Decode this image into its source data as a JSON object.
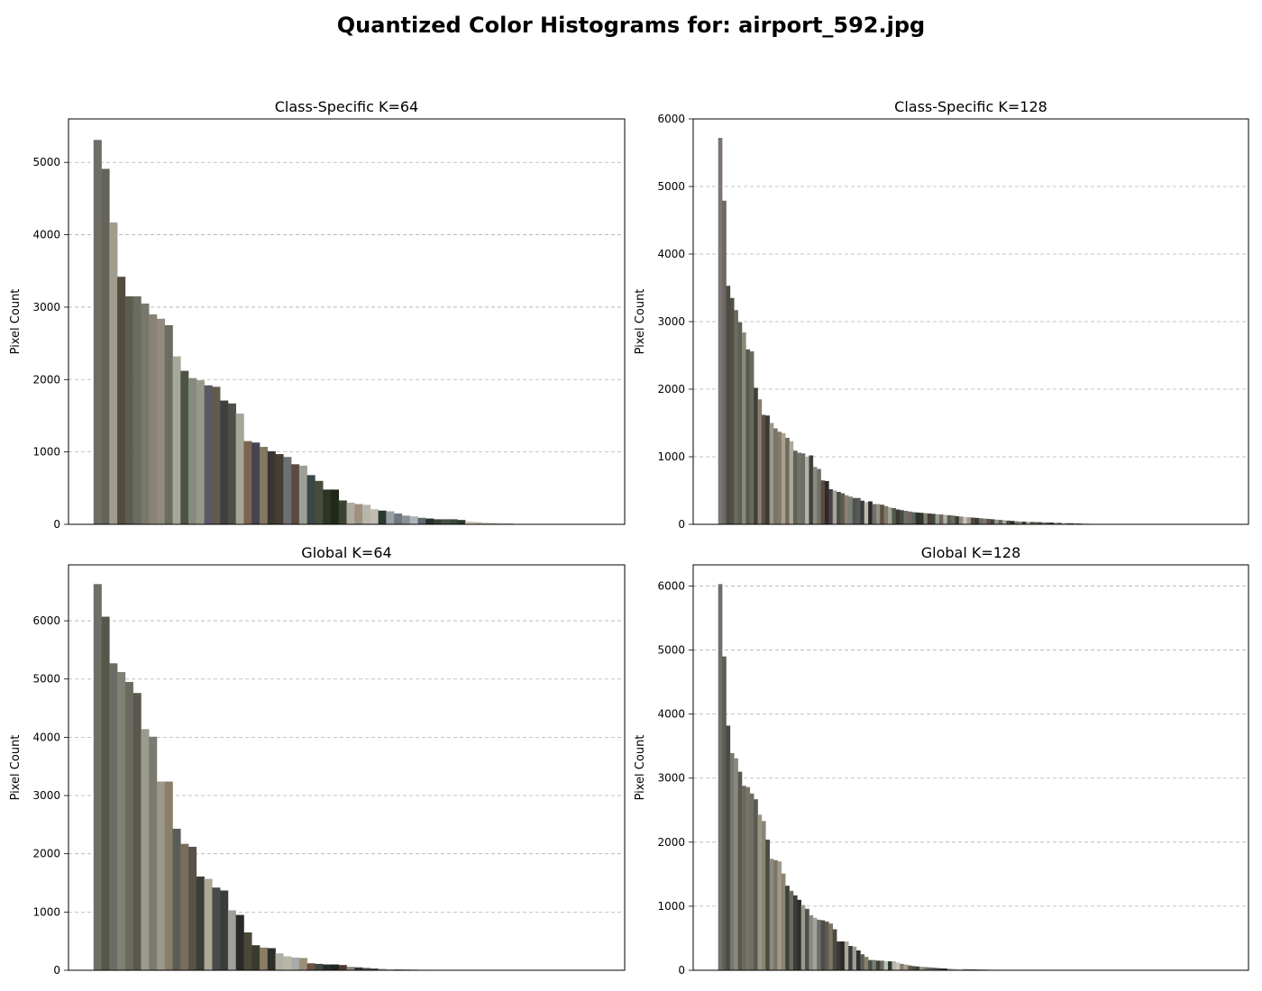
{
  "figure": {
    "title": "Quantized Color Histograms for: airport_592.jpg"
  },
  "chart_data": [
    {
      "type": "bar",
      "title": "Class-Specific K=64",
      "xlabel": "",
      "ylabel": "Pixel Count",
      "ylim": [
        0,
        5600
      ],
      "yticks": [
        0,
        1000,
        2000,
        3000,
        4000,
        5000
      ],
      "grid": "y-dashed",
      "values": [
        5310,
        4910,
        4170,
        3420,
        3150,
        3150,
        3050,
        2900,
        2840,
        2750,
        2320,
        2120,
        2020,
        1990,
        1920,
        1900,
        1710,
        1670,
        1530,
        1150,
        1130,
        1070,
        1010,
        970,
        930,
        830,
        810,
        680,
        600,
        480,
        480,
        330,
        300,
        280,
        270,
        210,
        190,
        180,
        150,
        120,
        110,
        90,
        80,
        70,
        70,
        70,
        60,
        40,
        30,
        20,
        15,
        10,
        10,
        5,
        5,
        0,
        0,
        0,
        0,
        0,
        0,
        0,
        0,
        0
      ],
      "colors": [
        "#6f6e66",
        "#65645b",
        "#a09d8f",
        "#524b3e",
        "#5c5d50",
        "#6b6c61",
        "#77786c",
        "#8a8274",
        "#928a7d",
        "#6a6c60",
        "#a7a79a",
        "#4d5446",
        "#858a7e",
        "#989889",
        "#5a5866",
        "#625a4d",
        "#3f3f40",
        "#4e5047",
        "#a8a598",
        "#7c6550",
        "#454550",
        "#857861",
        "#3b3530",
        "#463e35",
        "#6b7075",
        "#5a4a40",
        "#9ea097",
        "#3c4646",
        "#464d3c",
        "#2d3424",
        "#20281a",
        "#3a4330",
        "#b0ada0",
        "#a09080",
        "#b8b5aa",
        "#c0bdb0",
        "#2a3a30",
        "#9aa0a5",
        "#707880",
        "#8a9095",
        "#b0b5b8",
        "#606870",
        "#2a2e2a",
        "#384038",
        "#455048",
        "#3a4a40",
        "#2c3a2c",
        "#d0c8b8",
        "#c0b8a8",
        "#b8b0a0",
        "#a8a090",
        "#989080",
        "#888070",
        "#787060",
        "#686050",
        "#585040",
        "#484030",
        "#383020",
        "#282010",
        "#181000",
        "#101010",
        "#202020",
        "#303030",
        "#404040"
      ]
    },
    {
      "type": "bar",
      "title": "Class-Specific K=128",
      "xlabel": "",
      "ylabel": "Pixel Count",
      "ylim": [
        0,
        6000
      ],
      "yticks": [
        0,
        1000,
        2000,
        3000,
        4000,
        5000,
        6000
      ],
      "grid": "y-dashed",
      "values": [
        5720,
        4790,
        3530,
        3350,
        3170,
        2990,
        2840,
        2590,
        2560,
        2020,
        1850,
        1620,
        1610,
        1500,
        1420,
        1370,
        1350,
        1280,
        1230,
        1090,
        1060,
        1050,
        1000,
        1020,
        850,
        820,
        650,
        640,
        520,
        500,
        480,
        460,
        430,
        410,
        390,
        390,
        350,
        330,
        340,
        300,
        300,
        290,
        270,
        250,
        240,
        220,
        210,
        200,
        190,
        180,
        175,
        170,
        165,
        160,
        155,
        150,
        145,
        140,
        135,
        130,
        120,
        115,
        110,
        105,
        100,
        95,
        90,
        85,
        80,
        75,
        70,
        65,
        60,
        55,
        50,
        45,
        42,
        40,
        38,
        36,
        34,
        32,
        30,
        28,
        26,
        24,
        22,
        20,
        18,
        16,
        14,
        12,
        10,
        8,
        6,
        4,
        2,
        0,
        0,
        0,
        0,
        0,
        0,
        0,
        0,
        0,
        0,
        0,
        0,
        0,
        0,
        0,
        0,
        0,
        0,
        0,
        0,
        0,
        0,
        0,
        0,
        0,
        0,
        0,
        0,
        0,
        0,
        0
      ],
      "colors": [
        "#7d7573",
        "#6e6864",
        "#4a4e42",
        "#535046",
        "#6a6a60",
        "#5c6055",
        "#8c887a",
        "#5a5a4e",
        "#686a5e",
        "#3e4036",
        "#8a7e70",
        "#585046",
        "#3c3a34",
        "#9a9888",
        "#787468",
        "#847866",
        "#a8a090",
        "#706a5e",
        "#b0a898",
        "#5e6258",
        "#727468",
        "#6a6e64",
        "#b4b2a6",
        "#40403c",
        "#888c80",
        "#707268",
        "#5a4a44",
        "#2e2a28",
        "#48404a",
        "#a8a498",
        "#4a5048",
        "#605a50",
        "#8a8270",
        "#7a7e76",
        "#4e5450",
        "#585a5a",
        "#3a3e3c",
        "#c0bcb0",
        "#2c2a26",
        "#6e6e70",
        "#8e9080",
        "#5e5040",
        "#7e7a70",
        "#a2a094",
        "#505a4a",
        "#3a3830",
        "#484a44",
        "#6c7066",
        "#706860",
        "#5c625c",
        "#2e3430",
        "#34302c",
        "#7a8070",
        "#4a3e34",
        "#40483e",
        "#9a9a90",
        "#6a665a",
        "#b6b0a2",
        "#585c58",
        "#726a5c",
        "#3a4036",
        "#8a8a84",
        "#c8c4b8",
        "#a09888",
        "#504840",
        "#383a36",
        "#6a6c64",
        "#7c7468",
        "#5c5248",
        "#42443c",
        "#9c9484",
        "#626658",
        "#a6a8a0",
        "#4c4c46",
        "#2a2e2c",
        "#74786e",
        "#8e8678",
        "#3e3c36",
        "#b0aca0",
        "#565850",
        "#686458",
        "#444840",
        "#7e8078",
        "#5a564c",
        "#30302c",
        "#969488",
        "#4c5248",
        "#c2beb2",
        "#6c6a60",
        "#3a3a36",
        "#8c8c80",
        "#585650",
        "#a4a296",
        "#484640",
        "#7a766c",
        "#2c2c28",
        "#606058",
        "#9e9c90",
        "#505048",
        "#70706a",
        "#404038",
        "#88887c",
        "#5c5c54",
        "#b8b6aa",
        "#34342e",
        "#6a6a62",
        "#464640",
        "#9a988c",
        "#545450",
        "#7c7c74",
        "#3c3c36",
        "#8a8a7e",
        "#626260",
        "#acaa9e",
        "#424240",
        "#76766e",
        "#2e2e2a",
        "#a0a094",
        "#585852",
        "#6e6e66",
        "#48483e",
        "#90908a",
        "#5e5e56",
        "#b4b4a8",
        "#383834",
        "#7e7e76",
        "#4e4e46",
        "#969690"
      ]
    },
    {
      "type": "bar",
      "title": "Global K=64",
      "xlabel": "",
      "ylabel": "Pixel Count",
      "ylim": [
        0,
        6960
      ],
      "yticks": [
        0,
        1000,
        2000,
        3000,
        4000,
        5000,
        6000
      ],
      "grid": "y-dashed",
      "values": [
        6630,
        6070,
        5270,
        5120,
        4950,
        4760,
        4140,
        4010,
        3240,
        3240,
        2430,
        2170,
        2120,
        1610,
        1570,
        1420,
        1370,
        1030,
        950,
        650,
        430,
        390,
        380,
        290,
        240,
        220,
        210,
        120,
        110,
        100,
        100,
        90,
        60,
        50,
        40,
        30,
        25,
        20,
        15,
        12,
        10,
        8,
        6,
        5,
        4,
        3,
        2,
        1,
        1,
        0,
        0,
        0,
        0,
        0,
        0,
        0,
        0,
        0,
        0,
        0,
        0,
        0,
        0,
        0
      ],
      "colors": [
        "#6f6f68",
        "#56564a",
        "#6c6c66",
        "#808075",
        "#6a6a60",
        "#5a584e",
        "#9a9a8e",
        "#7a7a70",
        "#9a9888",
        "#8a7e6a",
        "#5a5c58",
        "#7a6e5a",
        "#585248",
        "#3e3e38",
        "#aca898",
        "#4a4a48",
        "#3c3c3c",
        "#a0a09c",
        "#2a2a28",
        "#4a4838",
        "#3a3a2e",
        "#8a7c66",
        "#2e2e28",
        "#b0b0a2",
        "#b8b6a8",
        "#a8aca8",
        "#9a8e78",
        "#6a5444",
        "#3e4a3e",
        "#2a2e2a",
        "#202420",
        "#4a3a2e",
        "#8a8a80",
        "#2e3638",
        "#4a524a",
        "#3a4440",
        "#9aa09a",
        "#c8c0b0",
        "#707070",
        "#505050",
        "#404040",
        "#303030",
        "#606060",
        "#808080",
        "#909090",
        "#a0a0a0",
        "#b0b0b0",
        "#c0c0c0",
        "#d0d0d0",
        "#e0e0e0",
        "#202020",
        "#101010",
        "#181818",
        "#282828",
        "#383838",
        "#484848",
        "#585858",
        "#686868",
        "#787878",
        "#888888",
        "#989898",
        "#a8a8a8",
        "#b8b8b8",
        "#c8c8c8"
      ]
    },
    {
      "type": "bar",
      "title": "Global K=128",
      "xlabel": "",
      "ylabel": "Pixel Count",
      "ylim": [
        0,
        6330
      ],
      "yticks": [
        0,
        1000,
        2000,
        3000,
        4000,
        5000,
        6000
      ],
      "grid": "y-dashed",
      "values": [
        6030,
        4900,
        3820,
        3390,
        3310,
        3100,
        2880,
        2860,
        2760,
        2670,
        2430,
        2330,
        2040,
        1740,
        1720,
        1700,
        1510,
        1320,
        1240,
        1170,
        1100,
        1020,
        960,
        860,
        820,
        790,
        780,
        760,
        730,
        640,
        450,
        450,
        450,
        380,
        370,
        310,
        250,
        210,
        160,
        160,
        150,
        150,
        140,
        140,
        140,
        120,
        100,
        90,
        75,
        65,
        60,
        55,
        50,
        45,
        40,
        35,
        30,
        28,
        26,
        24,
        22,
        20,
        18,
        16,
        14,
        12,
        10,
        10,
        8,
        8,
        6,
        6,
        4,
        4,
        2,
        2,
        1,
        1,
        0,
        0,
        0,
        0,
        0,
        0,
        0,
        0,
        0,
        0,
        0,
        0,
        0,
        0,
        0,
        0,
        0,
        0,
        0,
        0,
        0,
        0,
        0,
        0,
        0,
        0,
        0,
        0,
        0,
        0,
        0,
        0,
        0,
        0,
        0,
        0,
        0,
        0,
        0,
        0,
        0,
        0,
        0,
        0,
        0,
        0,
        0,
        0,
        0,
        0
      ],
      "colors": [
        "#6f706a",
        "#5c5e58",
        "#4a4a42",
        "#767870",
        "#8a8a80",
        "#585850",
        "#6a6a5e",
        "#7a7468",
        "#6e6e62",
        "#5a5a52",
        "#9a9686",
        "#8a8474",
        "#4a4c44",
        "#8a8a82",
        "#7e7664",
        "#a09a8a",
        "#8e8470",
        "#3e403a",
        "#6a6c64",
        "#3c3c36",
        "#2e2e2a",
        "#9a9a90",
        "#505048",
        "#888a84",
        "#a0a4a0",
        "#6e6e68",
        "#4c4c48",
        "#5e5a52",
        "#7e7464",
        "#4a4a40",
        "#3a3a34",
        "#2a2a26",
        "#aaa89c",
        "#383836",
        "#9c9c96",
        "#2e3030",
        "#5e5e58",
        "#8a7e6c",
        "#4a5048",
        "#7a7e78",
        "#3e4238",
        "#6c6c64",
        "#c0c0b8",
        "#2a3a30",
        "#b8b6aa",
        "#c8c4b8",
        "#8a8070",
        "#a8a090",
        "#6a5e50",
        "#585048",
        "#484038",
        "#989890",
        "#787870",
        "#686860",
        "#5a5a54",
        "#4c4c46",
        "#3c3c38",
        "#2c2c28",
        "#a8a8a0",
        "#b8b8b0",
        "#c8c8c0",
        "#d0d0c8",
        "#808078",
        "#707068",
        "#606058",
        "#505048",
        "#404038",
        "#303028",
        "#202018",
        "#9a968a",
        "#8a867a",
        "#7a766a",
        "#6a665a",
        "#5a564a",
        "#4a463a",
        "#3a362a",
        "#2a261a",
        "#1a160a",
        "#a8a498",
        "#989488",
        "#888478",
        "#787468",
        "#686458",
        "#585448",
        "#484438",
        "#383428",
        "#282418",
        "#181408",
        "#b0aca0",
        "#a09c90",
        "#908c80",
        "#807c70",
        "#706c60",
        "#605c50",
        "#504c40",
        "#403c30",
        "#302c20",
        "#201c10",
        "#c0bcb0",
        "#b0aca0",
        "#a09c90",
        "#908c80",
        "#807c70",
        "#706c60",
        "#605c50",
        "#504c40",
        "#403c30",
        "#302c20",
        "#201c10",
        "#d0ccc0",
        "#c0bcb0",
        "#b0aca0",
        "#a09c90",
        "#908c80",
        "#807c70",
        "#706c60",
        "#605c50",
        "#504c40",
        "#403c30",
        "#302c20",
        "#201c10",
        "#e0dcd0",
        "#d0ccc0",
        "#c0bcb0",
        "#b0aca0",
        "#a09c90",
        "#908c80"
      ]
    }
  ]
}
